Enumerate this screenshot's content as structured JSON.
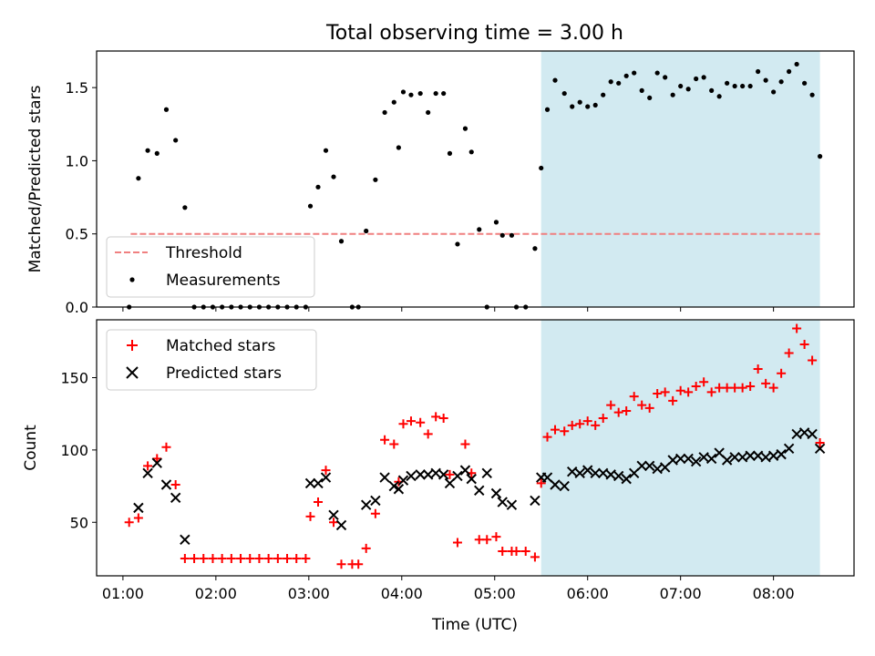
{
  "figure": {
    "title": "Total observing time = 3.00 h",
    "xlabel": "Time (UTC)",
    "xticks": [
      "01:00",
      "02:00",
      "03:00",
      "04:00",
      "05:00",
      "06:00",
      "07:00",
      "08:00"
    ]
  },
  "colors": {
    "measurements": "#000000",
    "threshold": "#f08080",
    "matched": "#ff0000",
    "predicted": "#000000",
    "shade": "#add8e6"
  },
  "chart_data": [
    {
      "type": "scatter",
      "ylabel": "Matched/Predicted stars",
      "xlim": [
        "00:43",
        "08:52"
      ],
      "ylim": [
        0,
        1.75
      ],
      "yticks": [
        "0.0",
        "0.5",
        "1.0",
        "1.5"
      ],
      "shaded_x_range": [
        "05:30",
        "08:30"
      ],
      "legend_position": "lower-left",
      "threshold": {
        "name": "Threshold",
        "y": 0.5,
        "x_range": [
          "01:05",
          "08:30"
        ],
        "style": "dashed"
      },
      "series": [
        {
          "name": "Measurements",
          "points": [
            [
              "01:04",
              0.0
            ],
            [
              "01:10",
              0.88
            ],
            [
              "01:16",
              1.07
            ],
            [
              "01:22",
              1.05
            ],
            [
              "01:28",
              1.35
            ],
            [
              "01:34",
              1.14
            ],
            [
              "01:40",
              0.68
            ],
            [
              "01:46",
              0.0
            ],
            [
              "01:52",
              0.0
            ],
            [
              "01:58",
              0.0
            ],
            [
              "02:04",
              0.0
            ],
            [
              "02:10",
              0.0
            ],
            [
              "02:16",
              0.0
            ],
            [
              "02:22",
              0.0
            ],
            [
              "02:28",
              0.0
            ],
            [
              "02:34",
              0.0
            ],
            [
              "02:40",
              0.0
            ],
            [
              "02:46",
              0.0
            ],
            [
              "02:52",
              0.0
            ],
            [
              "02:58",
              0.0
            ],
            [
              "03:01",
              0.69
            ],
            [
              "03:06",
              0.82
            ],
            [
              "03:11",
              1.07
            ],
            [
              "03:16",
              0.89
            ],
            [
              "03:21",
              0.45
            ],
            [
              "03:28",
              0.0
            ],
            [
              "03:32",
              0.0
            ],
            [
              "03:37",
              0.52
            ],
            [
              "03:43",
              0.87
            ],
            [
              "03:49",
              1.33
            ],
            [
              "03:55",
              1.4
            ],
            [
              "03:58",
              1.09
            ],
            [
              "04:01",
              1.47
            ],
            [
              "04:06",
              1.45
            ],
            [
              "04:12",
              1.46
            ],
            [
              "04:17",
              1.33
            ],
            [
              "04:22",
              1.46
            ],
            [
              "04:27",
              1.46
            ],
            [
              "04:31",
              1.05
            ],
            [
              "04:36",
              0.43
            ],
            [
              "04:41",
              1.22
            ],
            [
              "04:45",
              1.06
            ],
            [
              "04:50",
              0.53
            ],
            [
              "04:55",
              0.0
            ],
            [
              "05:01",
              0.58
            ],
            [
              "05:05",
              0.49
            ],
            [
              "05:11",
              0.49
            ],
            [
              "05:14",
              0.0
            ],
            [
              "05:20",
              0.0
            ],
            [
              "05:26",
              0.4
            ],
            [
              "05:30",
              0.95
            ],
            [
              "05:34",
              1.35
            ],
            [
              "05:39",
              1.55
            ],
            [
              "05:45",
              1.46
            ],
            [
              "05:50",
              1.37
            ],
            [
              "05:55",
              1.4
            ],
            [
              "06:00",
              1.37
            ],
            [
              "06:05",
              1.38
            ],
            [
              "06:10",
              1.45
            ],
            [
              "06:15",
              1.54
            ],
            [
              "06:20",
              1.53
            ],
            [
              "06:25",
              1.58
            ],
            [
              "06:30",
              1.6
            ],
            [
              "06:35",
              1.48
            ],
            [
              "06:40",
              1.43
            ],
            [
              "06:45",
              1.6
            ],
            [
              "06:50",
              1.57
            ],
            [
              "06:55",
              1.45
            ],
            [
              "07:00",
              1.51
            ],
            [
              "07:05",
              1.49
            ],
            [
              "07:10",
              1.56
            ],
            [
              "07:15",
              1.57
            ],
            [
              "07:20",
              1.48
            ],
            [
              "07:25",
              1.44
            ],
            [
              "07:30",
              1.53
            ],
            [
              "07:35",
              1.51
            ],
            [
              "07:40",
              1.51
            ],
            [
              "07:45",
              1.51
            ],
            [
              "07:50",
              1.61
            ],
            [
              "07:55",
              1.55
            ],
            [
              "08:00",
              1.47
            ],
            [
              "08:05",
              1.54
            ],
            [
              "08:10",
              1.61
            ],
            [
              "08:15",
              1.66
            ],
            [
              "08:20",
              1.53
            ],
            [
              "08:25",
              1.45
            ],
            [
              "08:30",
              1.03
            ]
          ]
        }
      ]
    },
    {
      "type": "scatter",
      "ylabel": "Count",
      "xlim": [
        "00:43",
        "08:52"
      ],
      "ylim": [
        13,
        190
      ],
      "yticks": [
        "50",
        "100",
        "150"
      ],
      "shaded_x_range": [
        "05:30",
        "08:30"
      ],
      "legend_position": "upper-left",
      "series": [
        {
          "name": "Matched stars",
          "marker": "plus",
          "points": [
            [
              "01:04",
              50
            ],
            [
              "01:10",
              53
            ],
            [
              "01:16",
              89
            ],
            [
              "01:22",
              94
            ],
            [
              "01:28",
              102
            ],
            [
              "01:34",
              76
            ],
            [
              "01:40",
              25
            ],
            [
              "01:46",
              25
            ],
            [
              "01:52",
              25
            ],
            [
              "01:58",
              25
            ],
            [
              "02:04",
              25
            ],
            [
              "02:10",
              25
            ],
            [
              "02:16",
              25
            ],
            [
              "02:22",
              25
            ],
            [
              "02:28",
              25
            ],
            [
              "02:34",
              25
            ],
            [
              "02:40",
              25
            ],
            [
              "02:46",
              25
            ],
            [
              "02:52",
              25
            ],
            [
              "02:58",
              25
            ],
            [
              "03:01",
              54
            ],
            [
              "03:06",
              64
            ],
            [
              "03:11",
              86
            ],
            [
              "03:16",
              50
            ],
            [
              "03:21",
              21
            ],
            [
              "03:28",
              21
            ],
            [
              "03:32",
              21
            ],
            [
              "03:37",
              32
            ],
            [
              "03:43",
              56
            ],
            [
              "03:49",
              107
            ],
            [
              "03:55",
              104
            ],
            [
              "03:58",
              78
            ],
            [
              "04:01",
              118
            ],
            [
              "04:06",
              120
            ],
            [
              "04:12",
              119
            ],
            [
              "04:17",
              111
            ],
            [
              "04:22",
              123
            ],
            [
              "04:27",
              122
            ],
            [
              "04:31",
              83
            ],
            [
              "04:36",
              36
            ],
            [
              "04:41",
              104
            ],
            [
              "04:45",
              84
            ],
            [
              "04:50",
              38
            ],
            [
              "04:55",
              38
            ],
            [
              "05:01",
              40
            ],
            [
              "05:05",
              30
            ],
            [
              "05:11",
              30
            ],
            [
              "05:14",
              30
            ],
            [
              "05:20",
              30
            ],
            [
              "05:26",
              26
            ],
            [
              "05:30",
              77
            ],
            [
              "05:34",
              109
            ],
            [
              "05:39",
              114
            ],
            [
              "05:45",
              113
            ],
            [
              "05:50",
              117
            ],
            [
              "05:55",
              118
            ],
            [
              "06:00",
              120
            ],
            [
              "06:05",
              117
            ],
            [
              "06:10",
              122
            ],
            [
              "06:15",
              131
            ],
            [
              "06:20",
              126
            ],
            [
              "06:25",
              127
            ],
            [
              "06:30",
              137
            ],
            [
              "06:35",
              131
            ],
            [
              "06:40",
              129
            ],
            [
              "06:45",
              139
            ],
            [
              "06:50",
              140
            ],
            [
              "06:55",
              134
            ],
            [
              "07:00",
              141
            ],
            [
              "07:05",
              140
            ],
            [
              "07:10",
              144
            ],
            [
              "07:15",
              147
            ],
            [
              "07:20",
              140
            ],
            [
              "07:25",
              143
            ],
            [
              "07:30",
              143
            ],
            [
              "07:35",
              143
            ],
            [
              "07:40",
              143
            ],
            [
              "07:45",
              144
            ],
            [
              "07:50",
              156
            ],
            [
              "07:55",
              146
            ],
            [
              "08:00",
              143
            ],
            [
              "08:05",
              153
            ],
            [
              "08:10",
              167
            ],
            [
              "08:15",
              184
            ],
            [
              "08:20",
              173
            ],
            [
              "08:25",
              162
            ],
            [
              "08:30",
              105
            ]
          ]
        },
        {
          "name": "Predicted stars",
          "marker": "x",
          "points": [
            [
              "01:10",
              60
            ],
            [
              "01:16",
              84
            ],
            [
              "01:22",
              91
            ],
            [
              "01:28",
              76
            ],
            [
              "01:34",
              67
            ],
            [
              "01:40",
              38
            ],
            [
              "03:01",
              77
            ],
            [
              "03:06",
              77
            ],
            [
              "03:11",
              81
            ],
            [
              "03:16",
              55
            ],
            [
              "03:21",
              48
            ],
            [
              "03:37",
              62
            ],
            [
              "03:43",
              65
            ],
            [
              "03:49",
              81
            ],
            [
              "03:55",
              75
            ],
            [
              "03:58",
              73
            ],
            [
              "04:01",
              79
            ],
            [
              "04:06",
              82
            ],
            [
              "04:12",
              83
            ],
            [
              "04:17",
              83
            ],
            [
              "04:22",
              84
            ],
            [
              "04:27",
              83
            ],
            [
              "04:31",
              77
            ],
            [
              "04:36",
              82
            ],
            [
              "04:41",
              86
            ],
            [
              "04:45",
              80
            ],
            [
              "04:50",
              72
            ],
            [
              "04:55",
              84
            ],
            [
              "05:01",
              70
            ],
            [
              "05:05",
              64
            ],
            [
              "05:11",
              62
            ],
            [
              "05:26",
              65
            ],
            [
              "05:30",
              81
            ],
            [
              "05:34",
              81
            ],
            [
              "05:39",
              76
            ],
            [
              "05:45",
              75
            ],
            [
              "05:50",
              85
            ],
            [
              "05:55",
              84
            ],
            [
              "06:00",
              86
            ],
            [
              "06:05",
              84
            ],
            [
              "06:10",
              84
            ],
            [
              "06:15",
              83
            ],
            [
              "06:20",
              82
            ],
            [
              "06:25",
              80
            ],
            [
              "06:30",
              84
            ],
            [
              "06:35",
              89
            ],
            [
              "06:40",
              89
            ],
            [
              "06:45",
              87
            ],
            [
              "06:50",
              88
            ],
            [
              "06:55",
              93
            ],
            [
              "07:00",
              94
            ],
            [
              "07:05",
              94
            ],
            [
              "07:10",
              92
            ],
            [
              "07:15",
              95
            ],
            [
              "07:20",
              94
            ],
            [
              "07:25",
              98
            ],
            [
              "07:30",
              93
            ],
            [
              "07:35",
              95
            ],
            [
              "07:40",
              95
            ],
            [
              "07:45",
              96
            ],
            [
              "07:50",
              96
            ],
            [
              "07:55",
              95
            ],
            [
              "08:00",
              96
            ],
            [
              "08:05",
              97
            ],
            [
              "08:10",
              101
            ],
            [
              "08:15",
              111
            ],
            [
              "08:20",
              112
            ],
            [
              "08:25",
              111
            ],
            [
              "08:30",
              101
            ]
          ]
        }
      ]
    }
  ]
}
